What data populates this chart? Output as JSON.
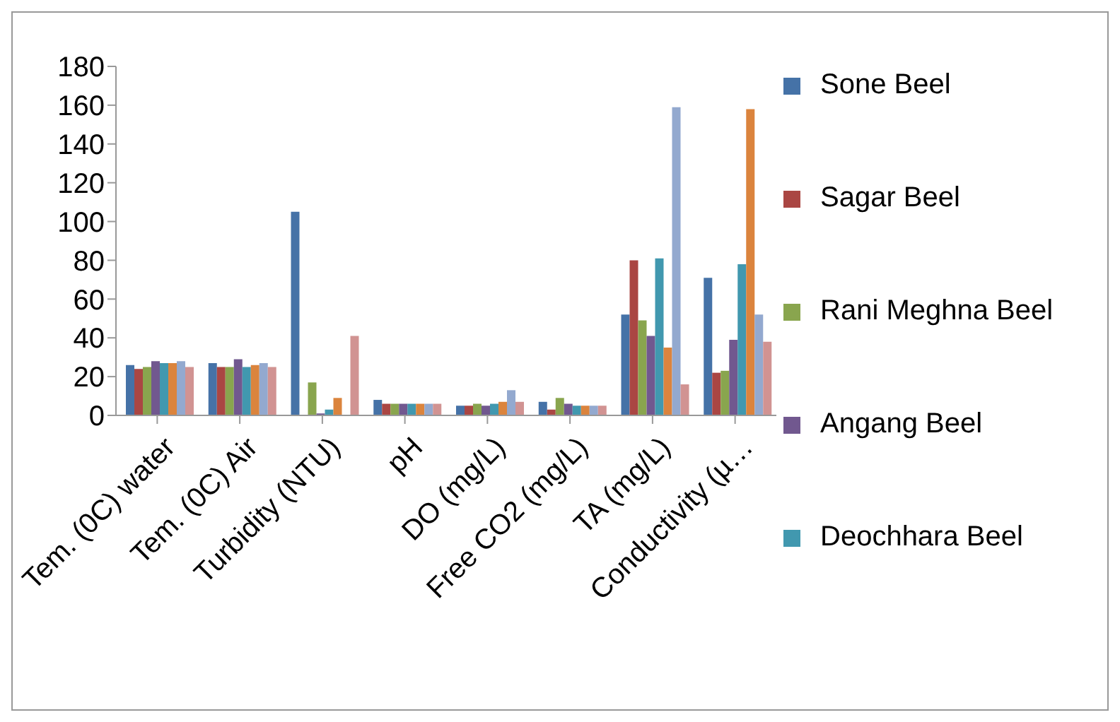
{
  "chart_data": {
    "type": "bar",
    "categories": [
      "Tem. (0C) water",
      "Tem. (0C) Air",
      "Turbidity (NTU)",
      "pH",
      "DO (mg/L)",
      "Free CO2 (mg/L)",
      "TA (mg/L)",
      "Conductivity (µ…"
    ],
    "series": [
      {
        "name": "Sone Beel",
        "color": "#4572a7",
        "values": [
          26,
          27,
          105,
          8,
          5,
          7,
          52,
          71
        ]
      },
      {
        "name": "Sagar Beel",
        "color": "#aa4643",
        "values": [
          24,
          25,
          0,
          6,
          5,
          3,
          80,
          22
        ]
      },
      {
        "name": "Rani Meghna Beel",
        "color": "#89a54e",
        "values": [
          25,
          25,
          17,
          6,
          6,
          9,
          49,
          23
        ]
      },
      {
        "name": "Angang Beel",
        "color": "#71588f",
        "values": [
          28,
          29,
          1,
          6,
          5,
          6,
          41,
          39
        ]
      },
      {
        "name": "Deochhara Beel",
        "color": "#4198af",
        "values": [
          27,
          25,
          3,
          6,
          6,
          5,
          81,
          78
        ]
      },
      {
        "color": "#db843d",
        "values": [
          27,
          26,
          9,
          6,
          7,
          5,
          35,
          158
        ]
      },
      {
        "color": "#93a9cf",
        "values": [
          28,
          27,
          0,
          6,
          13,
          5,
          159,
          52
        ]
      },
      {
        "color": "#d19392",
        "values": [
          25,
          25,
          41,
          6,
          7,
          5,
          16,
          38
        ]
      }
    ],
    "ylim": [
      0,
      180
    ],
    "yticks": [
      0,
      20,
      40,
      60,
      80,
      100,
      120,
      140,
      160,
      180
    ],
    "grid": false,
    "legend": "right"
  }
}
